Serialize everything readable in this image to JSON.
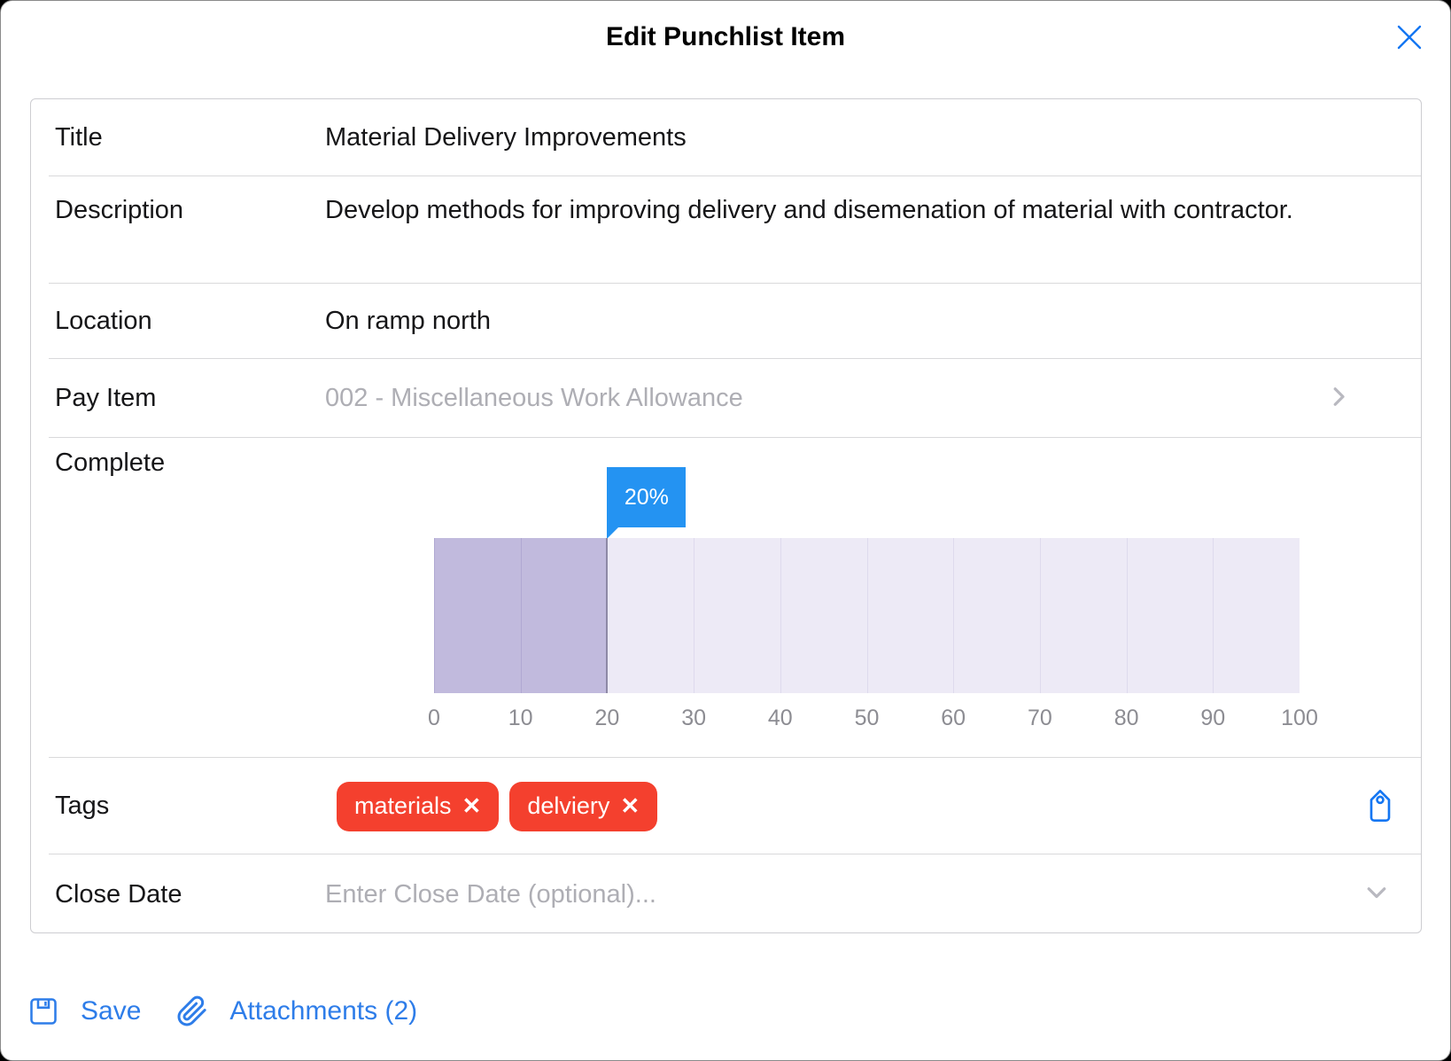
{
  "modal": {
    "title": "Edit Punchlist Item"
  },
  "fields": {
    "title": {
      "label": "Title",
      "value": "Material Delivery Improvements"
    },
    "description": {
      "label": "Description",
      "value": "Develop methods for improving delivery and disemenation of material with contractor."
    },
    "location": {
      "label": "Location",
      "value": "On ramp north"
    },
    "pay_item": {
      "label": "Pay Item",
      "value": "002 - Miscellaneous Work Allowance"
    },
    "complete": {
      "label": "Complete",
      "value_percent": 20,
      "tooltip": "20%",
      "ticks": [
        "0",
        "10",
        "20",
        "30",
        "40",
        "50",
        "60",
        "70",
        "80",
        "90",
        "100"
      ]
    },
    "tags": {
      "label": "Tags",
      "remove_icon": "✕",
      "items": [
        {
          "text": "materials"
        },
        {
          "text": "delviery"
        }
      ]
    },
    "close_date": {
      "label": "Close Date",
      "placeholder": "Enter Close Date (optional)..."
    }
  },
  "footer": {
    "save_label": "Save",
    "attachments_label": "Attachments (2)"
  },
  "colors": {
    "accent_blue": "#2e7de9",
    "tooltip_blue": "#2493f2",
    "icon_blue": "#1476f2",
    "tag_red": "#f4402e",
    "fill_purple": "#c1badd",
    "track": "#edeaf6",
    "divider": "#d9d9db",
    "text": "#161618",
    "muted": "#aeaeb4",
    "tick": "#8c8c92"
  }
}
